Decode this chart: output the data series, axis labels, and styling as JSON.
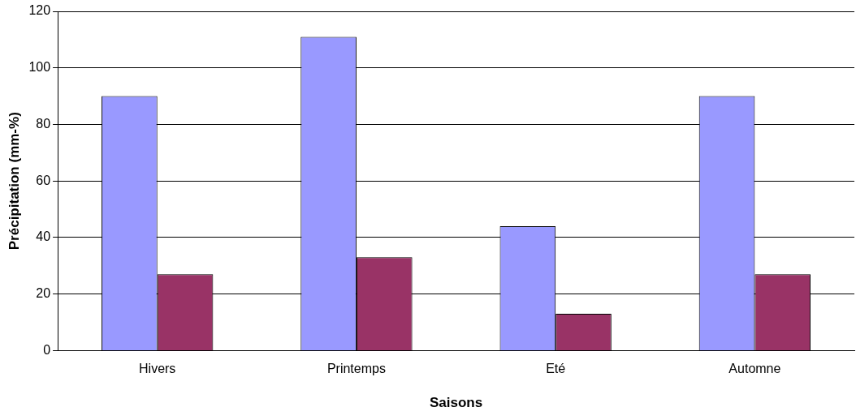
{
  "chart_data": {
    "type": "bar",
    "xlabel": "Saisons",
    "ylabel": "Précipitation (mm-%)",
    "categories": [
      "Hivers",
      "Printemps",
      "Eté",
      "Automne"
    ],
    "series": [
      {
        "color": "#9999ff",
        "values": [
          90,
          111,
          44,
          90
        ]
      },
      {
        "color": "#993366",
        "values": [
          27,
          33,
          13,
          27
        ]
      }
    ],
    "ylim": [
      0,
      120
    ],
    "yticks": [
      0,
      20,
      40,
      60,
      80,
      100,
      120
    ],
    "grid": "y",
    "legend": false
  }
}
